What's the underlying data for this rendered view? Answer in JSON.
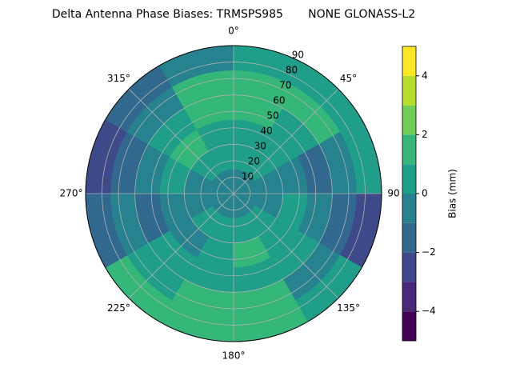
{
  "chart_data": {
    "type": "polar-contour",
    "title": "Delta Antenna Phase Biases: TRMSPS985       NONE GLONASS-L2",
    "theta_edges": [
      0,
      30,
      60,
      90,
      120,
      150,
      180,
      210,
      240,
      270,
      300,
      330,
      360
    ],
    "r_edges": [
      0,
      15,
      30,
      45,
      60,
      75,
      90
    ],
    "z": [
      [
        -0.5,
        0.5,
        0.5,
        1.5,
        1.5,
        0.5
      ],
      [
        -0.5,
        0.5,
        0.5,
        0.5,
        1.5,
        0.5
      ],
      [
        -0.5,
        -0.5,
        -0.5,
        -1.5,
        -0.5,
        0.5
      ],
      [
        -0.5,
        -0.5,
        0.5,
        -0.5,
        -1.5,
        -2.5
      ],
      [
        -0.5,
        0.5,
        0.5,
        0.5,
        -0.5,
        0.5
      ],
      [
        -0.5,
        0.5,
        1.5,
        0.5,
        1.5,
        1.5
      ],
      [
        -0.5,
        0.5,
        0.5,
        0.5,
        1.5,
        1.5
      ],
      [
        -0.5,
        0.5,
        -0.5,
        0.5,
        0.5,
        1.5
      ],
      [
        -0.5,
        -0.5,
        -0.5,
        -1.5,
        -0.5,
        -1.5
      ],
      [
        -0.5,
        -0.5,
        0.5,
        -0.5,
        -1.5,
        -2.5
      ],
      [
        -0.5,
        0.5,
        1.5,
        0.5,
        -0.5,
        -1.5
      ],
      [
        -0.5,
        0.5,
        0.5,
        1.5,
        1.5,
        -0.5
      ]
    ],
    "rlim": [
      0,
      90
    ],
    "rticks": [
      10,
      20,
      30,
      40,
      50,
      60,
      70,
      80,
      90
    ],
    "theta_ticks": [
      {
        "value": 0,
        "label": "0°"
      },
      {
        "value": 45,
        "label": "45°"
      },
      {
        "value": 90,
        "label": "90°"
      },
      {
        "value": 135,
        "label": "135°"
      },
      {
        "value": 180,
        "label": "180°"
      },
      {
        "value": 225,
        "label": "225°"
      },
      {
        "value": 270,
        "label": "270°"
      },
      {
        "value": 315,
        "label": "315°"
      }
    ],
    "grid": true,
    "colorbar": {
      "label": "Bias (mm)",
      "levels": [
        -5,
        -4,
        -3,
        -2,
        -1,
        0,
        1,
        2,
        3,
        4,
        5
      ],
      "colors": [
        "#440154",
        "#482878",
        "#3e4989",
        "#31688e",
        "#26828e",
        "#1f9e89",
        "#35b779",
        "#6ece58",
        "#b5de2b",
        "#fde725"
      ],
      "ticks": [
        {
          "value": -4,
          "label": "−4"
        },
        {
          "value": -2,
          "label": "−2"
        },
        0,
        2,
        4
      ]
    }
  }
}
